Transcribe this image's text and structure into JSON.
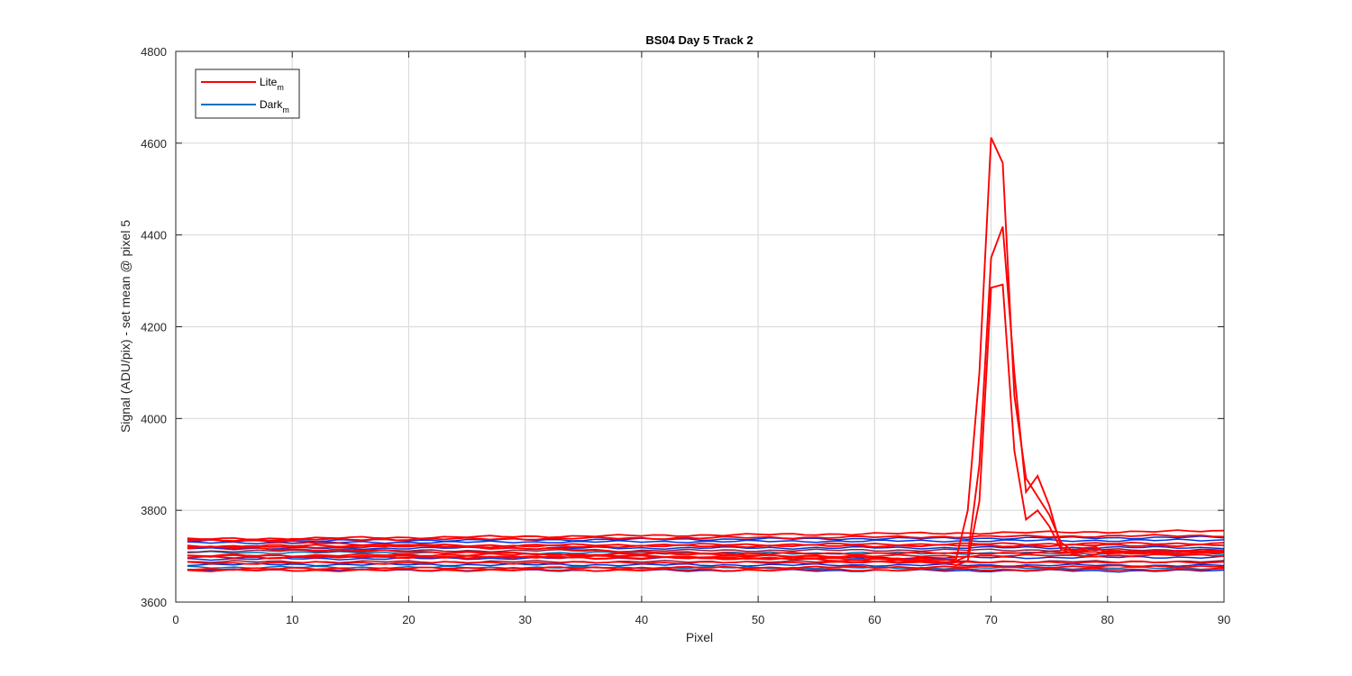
{
  "chart_data": {
    "type": "line",
    "title": "BS04 Day 5 Track 2",
    "xlabel": "Pixel",
    "ylabel": "Signal (ADU/pix) - set mean @ pixel 5",
    "xlim": [
      0,
      90
    ],
    "ylim": [
      3600,
      4800
    ],
    "xticks": [
      0,
      10,
      20,
      30,
      40,
      50,
      60,
      70,
      80,
      90
    ],
    "yticks": [
      3600,
      3800,
      4000,
      4200,
      4400,
      4600,
      4800
    ],
    "grid": true,
    "legend_position": "top-left",
    "legend": [
      {
        "label": "Lite",
        "subscript": "m",
        "color": "#ff0000"
      },
      {
        "label": "Dark",
        "subscript": "m",
        "color": "#0072bd"
      }
    ],
    "colors": {
      "lite": "#ff0000",
      "dark": "#0033dd",
      "dark_alt": "#0072bd",
      "mixed": "#8a2040"
    },
    "x_start": 1,
    "x_end": 90,
    "baseline_series": [
      {
        "group": "lite",
        "level": 3737,
        "drift": 18
      },
      {
        "group": "lite",
        "level": 3735,
        "drift": 10
      },
      {
        "group": "lite",
        "level": 3722,
        "drift": 6
      },
      {
        "group": "lite",
        "level": 3720,
        "drift": 4
      },
      {
        "group": "lite",
        "level": 3701,
        "drift": 8
      },
      {
        "group": "lite",
        "level": 3697,
        "drift": 5
      },
      {
        "group": "lite",
        "level": 3685,
        "drift": 2
      },
      {
        "group": "lite",
        "level": 3672,
        "drift": 6
      },
      {
        "group": "lite",
        "level": 3669,
        "drift": 2
      },
      {
        "group": "dark",
        "level": 3733,
        "drift": 8
      },
      {
        "group": "dark",
        "level": 3729,
        "drift": 6
      },
      {
        "group": "dark",
        "level": 3717,
        "drift": 2
      },
      {
        "group": "dark",
        "level": 3694,
        "drift": 4
      },
      {
        "group": "dark",
        "level": 3682,
        "drift": -2
      },
      {
        "group": "dark",
        "level": 3670,
        "drift": -2
      },
      {
        "group": "dark_alt",
        "level": 3708,
        "drift": -2
      },
      {
        "group": "dark_alt",
        "level": 3676,
        "drift": -2
      },
      {
        "group": "mixed",
        "level": 3711,
        "drift": 3
      },
      {
        "group": "mixed",
        "level": 3688,
        "drift": 0
      }
    ],
    "spike_series": [
      {
        "name": "spike-1",
        "group": "lite",
        "points": [
          [
            1,
            3737
          ],
          [
            66,
            3692
          ],
          [
            67,
            3694
          ],
          [
            68,
            3800
          ],
          [
            69,
            4100
          ],
          [
            70,
            4612
          ],
          [
            71,
            4557
          ],
          [
            72,
            4050
          ],
          [
            73,
            3870
          ],
          [
            74,
            3830
          ],
          [
            75,
            3790
          ],
          [
            76,
            3730
          ],
          [
            77,
            3712
          ],
          [
            78,
            3718
          ],
          [
            79,
            3720
          ],
          [
            80,
            3705
          ],
          [
            90,
            3708
          ]
        ]
      },
      {
        "name": "spike-2",
        "group": "lite",
        "points": [
          [
            1,
            3701
          ],
          [
            66,
            3693
          ],
          [
            67,
            3690
          ],
          [
            68,
            3700
          ],
          [
            69,
            3900
          ],
          [
            70,
            4350
          ],
          [
            71,
            4418
          ],
          [
            72,
            4100
          ],
          [
            73,
            3840
          ],
          [
            74,
            3875
          ],
          [
            75,
            3810
          ],
          [
            76,
            3720
          ],
          [
            77,
            3710
          ],
          [
            78,
            3712
          ],
          [
            79,
            3716
          ],
          [
            80,
            3710
          ],
          [
            90,
            3712
          ]
        ]
      },
      {
        "name": "spike-3",
        "group": "lite",
        "points": [
          [
            1,
            3720
          ],
          [
            66,
            3687
          ],
          [
            67,
            3680
          ],
          [
            68,
            3690
          ],
          [
            69,
            3820
          ],
          [
            70,
            4285
          ],
          [
            71,
            4292
          ],
          [
            72,
            3930
          ],
          [
            73,
            3780
          ],
          [
            74,
            3800
          ],
          [
            75,
            3765
          ],
          [
            76,
            3715
          ],
          [
            77,
            3705
          ],
          [
            78,
            3700
          ],
          [
            79,
            3704
          ],
          [
            80,
            3712
          ],
          [
            90,
            3708
          ]
        ]
      }
    ]
  }
}
